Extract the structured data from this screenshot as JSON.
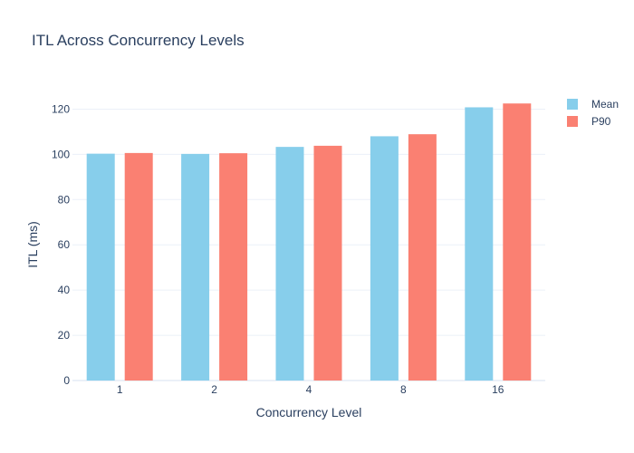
{
  "chart_data": {
    "type": "bar",
    "title": "ITL Across Concurrency Levels",
    "xlabel": "Concurrency Level",
    "ylabel": "ITL (ms)",
    "categories": [
      "1",
      "2",
      "4",
      "8",
      "16"
    ],
    "series": [
      {
        "name": "Mean",
        "color": "#87ceeb",
        "values": [
          100.3,
          100.2,
          103.3,
          108.0,
          120.8
        ]
      },
      {
        "name": "P90",
        "color": "#fa8072",
        "values": [
          100.6,
          100.5,
          103.8,
          108.9,
          122.5
        ]
      }
    ],
    "ylim": [
      0,
      133
    ],
    "yticks": [
      0,
      20,
      40,
      60,
      80,
      100,
      120
    ],
    "grid": true,
    "legend_position": "top-right"
  }
}
